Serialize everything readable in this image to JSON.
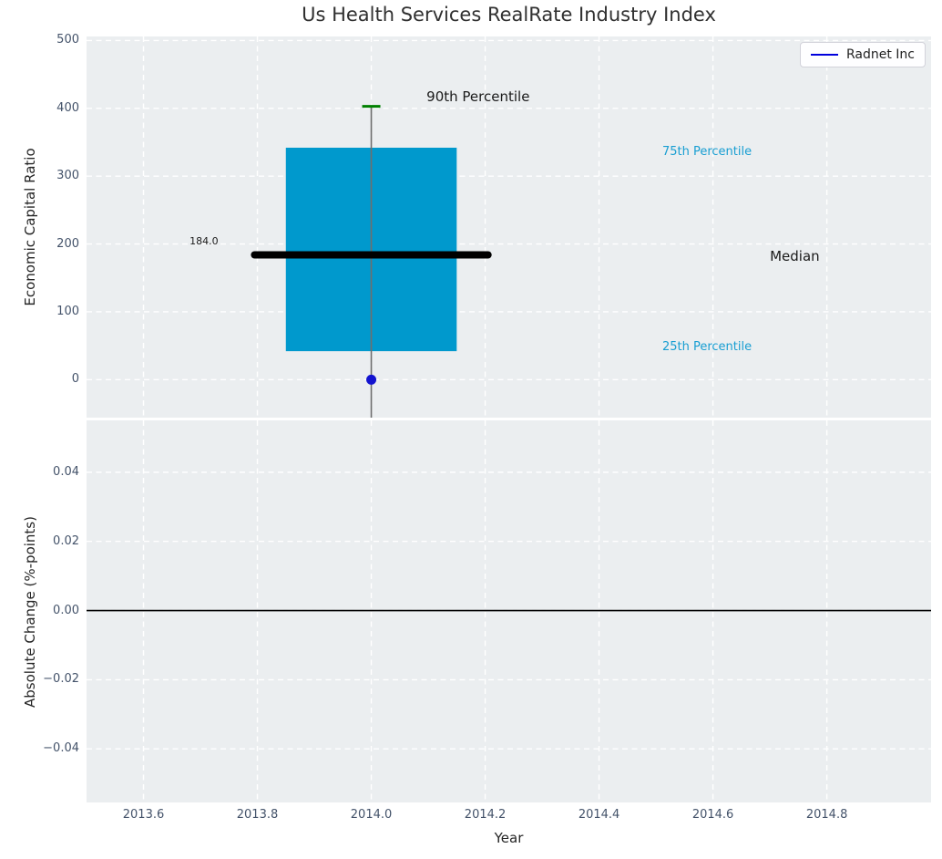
{
  "figure": {
    "title": "Us Health Services RealRate Industry Index",
    "legend": {
      "label": "Radnet Inc",
      "line_color": "#0000dd"
    },
    "colors": {
      "plot_bg": "#ebeef0",
      "grid": "#ffffff",
      "box_fill": "#0099cd",
      "whisker": "#6e6e6e",
      "p90_cap": "#008000",
      "median_line": "#000000",
      "company_dot": "#1313cf",
      "cyan_label": "#189ed2",
      "dark_label": "#1a1a1a",
      "tick_label": "#44536a",
      "zero_line": "#000000"
    }
  },
  "chart_data": [
    {
      "type": "boxplot",
      "subplot": "top",
      "title": "Us Health Services RealRate Industry Index",
      "ylabel": "Economic Capital Ratio",
      "xlim": [
        2013.5,
        2014.983
      ],
      "ylim": [
        -56,
        506
      ],
      "grid": true,
      "yticks": [
        {
          "v": 500,
          "label": "500"
        },
        {
          "v": 400,
          "label": "400"
        },
        {
          "v": 300,
          "label": "300"
        },
        {
          "v": 200,
          "label": "200"
        },
        {
          "v": 100,
          "label": "100"
        },
        {
          "v": 0,
          "label": "0"
        }
      ],
      "xticks": [
        {
          "v": 2013.6,
          "label": ""
        },
        {
          "v": 2013.8,
          "label": ""
        },
        {
          "v": 2014.0,
          "label": ""
        },
        {
          "v": 2014.2,
          "label": ""
        },
        {
          "v": 2014.4,
          "label": ""
        },
        {
          "v": 2014.6,
          "label": ""
        },
        {
          "v": 2014.8,
          "label": ""
        }
      ],
      "box": {
        "x": 2014.0,
        "p90": 403,
        "p75": 342,
        "median": 184,
        "p25": 42,
        "whisker_low": -56,
        "whisker_low_clipped": true,
        "box_halfwidth": 0.15,
        "median_halfwidth": 0.205
      },
      "point": {
        "name": "Radnet Inc",
        "x": 2014.0,
        "y": 0
      },
      "annotations": [
        {
          "text": "90th Percentile",
          "x": 2014.097,
          "y": 417,
          "color": "dark",
          "size": 15
        },
        {
          "text": "75th Percentile",
          "x": 2014.511,
          "y": 335,
          "color": "cyan",
          "size": 13
        },
        {
          "text": "Median",
          "x": 2014.7,
          "y": 182,
          "color": "dark",
          "size": 15
        },
        {
          "text": "25th Percentile",
          "x": 2014.511,
          "y": 48,
          "color": "cyan",
          "size": 13
        },
        {
          "text": "184.0",
          "x": 2013.681,
          "y": 203,
          "color": "dark",
          "size": 11
        }
      ],
      "legend": [
        "Radnet Inc"
      ]
    },
    {
      "type": "line",
      "subplot": "bottom",
      "xlabel": "Year",
      "ylabel": "Absolute Change (%-points)",
      "xlim": [
        2013.5,
        2014.983
      ],
      "ylim": [
        -0.0555,
        0.055
      ],
      "grid": true,
      "zero_line_y": 0.0,
      "series": [],
      "yticks": [
        {
          "v": 0.04,
          "label": "0.04"
        },
        {
          "v": 0.02,
          "label": "0.02"
        },
        {
          "v": 0.0,
          "label": "0.00"
        },
        {
          "v": -0.02,
          "label": "−0.02"
        },
        {
          "v": -0.04,
          "label": "−0.04"
        }
      ],
      "xticks": [
        {
          "v": 2013.6,
          "label": "2013.6"
        },
        {
          "v": 2013.8,
          "label": "2013.8"
        },
        {
          "v": 2014.0,
          "label": "2014.0"
        },
        {
          "v": 2014.2,
          "label": "2014.2"
        },
        {
          "v": 2014.4,
          "label": "2014.4"
        },
        {
          "v": 2014.6,
          "label": "2014.6"
        },
        {
          "v": 2014.8,
          "label": "2014.8"
        }
      ]
    }
  ]
}
